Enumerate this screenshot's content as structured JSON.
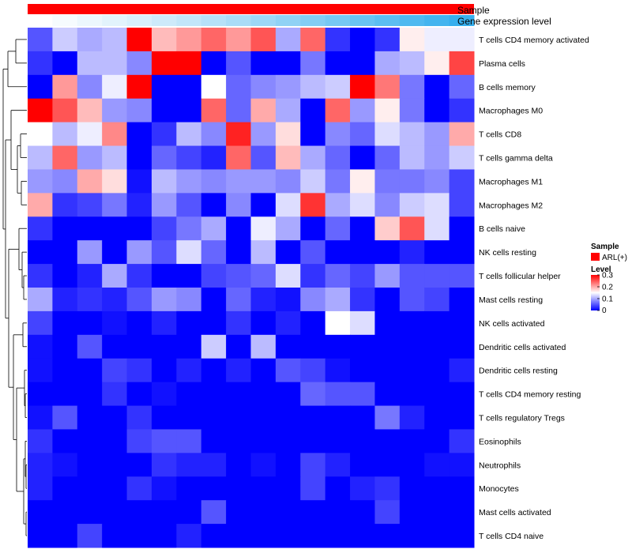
{
  "chart_data": {
    "type": "heatmap",
    "title": "",
    "annotation_tracks": [
      {
        "label": "Sample",
        "color": "#ff0000"
      },
      {
        "label": "Gene expression level",
        "colors": [
          "#ffffff",
          "#f6fbfe",
          "#ecf7fd",
          "#e2f3fc",
          "#d8effb",
          "#cdeafa",
          "#c2e6f9",
          "#b6e1f8",
          "#aadcf7",
          "#9dd7f6",
          "#90d2f5",
          "#83cdf4",
          "#76c8f3",
          "#69c3f2",
          "#5cbef1",
          "#4fb9f0",
          "#43b4ef",
          "#37afee"
        ]
      }
    ],
    "rows": [
      "T cells CD4 memory activated",
      "Plasma cells",
      "B cells memory",
      "Macrophages M0",
      "T cells CD8",
      "T cells gamma delta",
      "Macrophages M1",
      "Macrophages M2",
      "B cells naive",
      "NK cells resting",
      "T cells follicular helper",
      "Mast cells resting",
      "NK cells activated",
      "Dendritic cells activated",
      "Dendritic cells resting",
      "T cells CD4 memory resting",
      "T cells regulatory  Tregs",
      "Eosinophils",
      "Neutrophils",
      "Monocytes",
      "Mast cells activated",
      "T cells CD4 naive"
    ],
    "n_columns": 18,
    "values": [
      [
        0.05,
        0.12,
        0.1,
        0.11,
        0.3,
        0.19,
        0.21,
        0.24,
        0.21,
        0.25,
        0.1,
        0.24,
        0.03,
        0.0,
        0.03,
        0.16,
        0.14,
        0.14
      ],
      [
        0.03,
        0.0,
        0.11,
        0.11,
        0.08,
        0.3,
        0.3,
        0.0,
        0.05,
        0.0,
        0.0,
        0.07,
        0.0,
        0.0,
        0.1,
        0.11,
        0.16,
        0.26
      ],
      [
        0.0,
        0.21,
        0.08,
        0.14,
        0.3,
        0.0,
        0.0,
        0.15,
        0.06,
        0.08,
        0.09,
        0.11,
        0.12,
        0.3,
        0.23,
        0.07,
        0.0,
        0.06
      ],
      [
        0.3,
        0.25,
        0.19,
        0.09,
        0.08,
        0.0,
        0.0,
        0.24,
        0.06,
        0.2,
        0.1,
        0.0,
        0.24,
        0.09,
        0.16,
        0.07,
        0.0,
        0.03
      ],
      [
        0.15,
        0.11,
        0.14,
        0.22,
        0.0,
        0.03,
        0.11,
        0.08,
        0.28,
        0.09,
        0.17,
        0.0,
        0.08,
        0.06,
        0.13,
        0.11,
        0.09,
        0.2
      ],
      [
        0.11,
        0.24,
        0.09,
        0.11,
        0.0,
        0.06,
        0.04,
        0.02,
        0.24,
        0.05,
        0.19,
        0.1,
        0.06,
        0.0,
        0.06,
        0.11,
        0.09,
        0.12
      ],
      [
        0.09,
        0.08,
        0.2,
        0.17,
        0.01,
        0.11,
        0.09,
        0.08,
        0.09,
        0.09,
        0.08,
        0.12,
        0.07,
        0.16,
        0.07,
        0.07,
        0.08,
        0.04
      ],
      [
        0.2,
        0.03,
        0.04,
        0.07,
        0.02,
        0.09,
        0.05,
        0.0,
        0.08,
        0.0,
        0.13,
        0.27,
        0.1,
        0.13,
        0.08,
        0.12,
        0.13,
        0.04
      ],
      [
        0.03,
        0.0,
        0.0,
        0.0,
        0.0,
        0.04,
        0.07,
        0.1,
        0.0,
        0.14,
        0.1,
        0.0,
        0.06,
        0.0,
        0.18,
        0.25,
        0.13,
        0.0
      ],
      [
        0.0,
        0.0,
        0.09,
        0.0,
        0.09,
        0.05,
        0.13,
        0.06,
        0.0,
        0.11,
        0.0,
        0.05,
        0.0,
        0.0,
        0.0,
        0.02,
        0.0,
        0.0
      ],
      [
        0.03,
        0.0,
        0.02,
        0.1,
        0.03,
        0.0,
        0.0,
        0.04,
        0.05,
        0.06,
        0.13,
        0.03,
        0.06,
        0.04,
        0.09,
        0.05,
        0.05,
        0.05
      ],
      [
        0.1,
        0.02,
        0.03,
        0.02,
        0.05,
        0.09,
        0.08,
        0.0,
        0.06,
        0.02,
        0.01,
        0.08,
        0.1,
        0.03,
        0.0,
        0.05,
        0.04,
        0.0
      ],
      [
        0.04,
        0.0,
        0.0,
        0.01,
        0.0,
        0.02,
        0.0,
        0.0,
        0.03,
        0.0,
        0.02,
        0.0,
        0.15,
        0.13,
        0.0,
        0.0,
        0.0,
        0.0
      ],
      [
        0.01,
        0.0,
        0.05,
        0.0,
        0.0,
        0.0,
        0.0,
        0.12,
        0.0,
        0.11,
        0.0,
        0.0,
        0.0,
        0.0,
        0.0,
        0.0,
        0.0,
        0.0
      ],
      [
        0.01,
        0.0,
        0.0,
        0.04,
        0.03,
        0.0,
        0.02,
        0.0,
        0.02,
        0.0,
        0.05,
        0.04,
        0.01,
        0.0,
        0.0,
        0.0,
        0.0,
        0.02
      ],
      [
        0.0,
        0.0,
        0.0,
        0.03,
        0.0,
        0.01,
        0.0,
        0.0,
        0.0,
        0.0,
        0.0,
        0.06,
        0.05,
        0.05,
        0.0,
        0.0,
        0.0,
        0.0
      ],
      [
        0.01,
        0.05,
        0.0,
        0.0,
        0.03,
        0.0,
        0.0,
        0.0,
        0.0,
        0.0,
        0.0,
        0.0,
        0.0,
        0.0,
        0.07,
        0.02,
        0.0,
        0.0
      ],
      [
        0.03,
        0.0,
        0.0,
        0.0,
        0.04,
        0.05,
        0.05,
        0.0,
        0.0,
        0.0,
        0.0,
        0.0,
        0.0,
        0.0,
        0.0,
        0.0,
        0.0,
        0.03
      ],
      [
        0.02,
        0.01,
        0.0,
        0.0,
        0.0,
        0.03,
        0.02,
        0.02,
        0.0,
        0.01,
        0.0,
        0.04,
        0.02,
        0.0,
        0.0,
        0.0,
        0.01,
        0.01
      ],
      [
        0.02,
        0.0,
        0.0,
        0.0,
        0.03,
        0.01,
        0.0,
        0.0,
        0.0,
        0.0,
        0.0,
        0.04,
        0.0,
        0.02,
        0.03,
        0.0,
        0.0,
        0.0
      ],
      [
        0.0,
        0.0,
        0.0,
        0.0,
        0.0,
        0.0,
        0.0,
        0.05,
        0.0,
        0.0,
        0.0,
        0.0,
        0.0,
        0.0,
        0.04,
        0.0,
        0.0,
        0.0
      ],
      [
        0.0,
        0.0,
        0.04,
        0.0,
        0.0,
        0.0,
        0.02,
        0.0,
        0.0,
        0.0,
        0.0,
        0.0,
        0.0,
        0.0,
        0.0,
        0.0,
        0.0,
        0.0
      ]
    ],
    "color_scale": {
      "min": 0,
      "mid": 0.15,
      "max": 0.3,
      "low": "#0000ff",
      "midColor": "#ffffff",
      "high": "#ff0000"
    },
    "row_order": [
      0,
      1,
      2,
      3,
      4,
      5,
      6,
      7,
      8,
      9,
      10,
      11,
      12,
      13,
      14,
      15,
      16,
      17,
      18,
      19,
      20,
      21
    ]
  },
  "legend": {
    "sample_title": "Sample",
    "sample_entry": "ARL(+)",
    "sample_color": "#ff0000",
    "level_title": "Level",
    "ticks": [
      {
        "value": 0.3,
        "label": "0.3"
      },
      {
        "value": 0.2,
        "label": "0.2"
      },
      {
        "value": 0.1,
        "label": "0.1"
      },
      {
        "value": 0.0,
        "label": "0"
      }
    ]
  }
}
